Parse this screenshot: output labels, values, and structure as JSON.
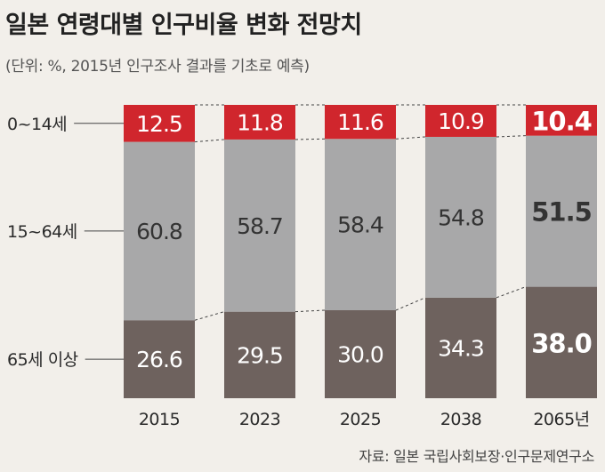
{
  "title": "일본 연령대별 인구비율 변화 전망치",
  "subtitle": "(단위: %, 2015년 인구조사 결과를 기초로 예측)",
  "source": "자료: 일본 국립사회보장·인구문제연구소",
  "colors": {
    "background": "#f2efea",
    "age_0_14": "#d0262d",
    "age_15_64": "#a8a8a9",
    "age_65_plus": "#6e625e",
    "connector": "#444444"
  },
  "chart_data": {
    "type": "bar",
    "stacked": true,
    "categories": [
      "2015",
      "2023",
      "2025",
      "2038",
      "2065년"
    ],
    "ylim": [
      0,
      100
    ],
    "series": [
      {
        "name": "65세 이상",
        "values": [
          26.6,
          29.5,
          30.0,
          34.3,
          38.0
        ],
        "labels": [
          "26.6",
          "29.5",
          "30.0",
          "34.3",
          "38.0"
        ]
      },
      {
        "name": "15~64세",
        "values": [
          60.8,
          58.7,
          58.4,
          54.8,
          51.5
        ],
        "labels": [
          "60.8",
          "58.7",
          "58.4",
          "54.8",
          "51.5"
        ]
      },
      {
        "name": "0~14세",
        "values": [
          12.5,
          11.8,
          11.6,
          10.9,
          10.4
        ],
        "labels": [
          "12.5",
          "11.8",
          "11.6",
          "10.9",
          "10.4"
        ]
      }
    ]
  }
}
